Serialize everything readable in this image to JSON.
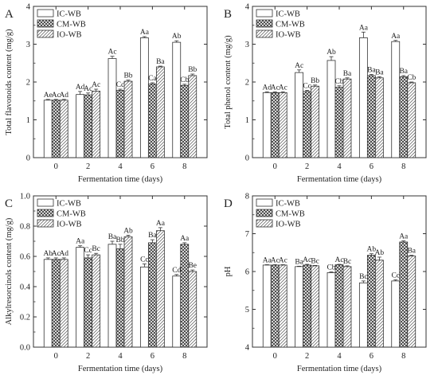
{
  "colors": {
    "frame": "#333333",
    "bar_edge": "#333333",
    "background": "#ffffff"
  },
  "series_styles": [
    {
      "name": "IC-WB",
      "fill": "white"
    },
    {
      "name": "CM-WB",
      "fill": "crosshatch"
    },
    {
      "name": "IO-WB",
      "fill": "diagonal"
    }
  ],
  "chart_data": [
    {
      "panel": "A",
      "type": "bar",
      "ylabel": "Total flavonoids content (mg/g)",
      "xlabel": "Fermentation time (days)",
      "categories": [
        "0",
        "2",
        "4",
        "6",
        "8"
      ],
      "ylim": [
        0,
        4
      ],
      "yticks": [
        0,
        1,
        2,
        3,
        4
      ],
      "grid": false,
      "legend": "top-left",
      "series": [
        {
          "name": "IC-WB",
          "values": [
            1.52,
            1.67,
            2.62,
            3.17,
            3.05
          ],
          "errors": [
            0.02,
            0.08,
            0.06,
            0.03,
            0.04
          ],
          "labels": [
            "Ae",
            "Ad",
            "Ac",
            "Aa",
            "Ab"
          ]
        },
        {
          "name": "CM-WB",
          "values": [
            1.52,
            1.66,
            1.78,
            1.95,
            1.91
          ],
          "errors": [
            0.02,
            0.05,
            0.03,
            0.03,
            0.03
          ],
          "labels": [
            "Ac",
            "Ac",
            "Cc",
            "Ca",
            "Cb"
          ]
        },
        {
          "name": "IO-WB",
          "values": [
            1.52,
            1.76,
            2.02,
            2.4,
            2.17
          ],
          "errors": [
            0.02,
            0.05,
            0.03,
            0.02,
            0.04
          ],
          "labels": [
            "Ad",
            "Ac",
            "Bb",
            "Ba",
            "Bb"
          ]
        }
      ]
    },
    {
      "panel": "B",
      "type": "bar",
      "ylabel": "Total phenol content (mg/g)",
      "xlabel": "Fermentation time (days)",
      "categories": [
        "0",
        "2",
        "4",
        "6",
        "8"
      ],
      "ylim": [
        0,
        4
      ],
      "yticks": [
        0,
        1,
        2,
        3,
        4
      ],
      "grid": false,
      "legend": "top-left",
      "series": [
        {
          "name": "IC-WB",
          "values": [
            1.72,
            2.25,
            2.57,
            3.17,
            3.07
          ],
          "errors": [
            0.02,
            0.07,
            0.1,
            0.15,
            0.03
          ],
          "labels": [
            "Ad",
            "Ac",
            "Ab",
            "Aa",
            "Aa"
          ]
        },
        {
          "name": "CM-WB",
          "values": [
            1.72,
            1.75,
            1.86,
            2.17,
            2.14
          ],
          "errors": [
            0.02,
            0.03,
            0.04,
            0.03,
            0.03
          ],
          "labels": [
            "Ac",
            "Cc",
            "Cb",
            "Ba",
            "Ba"
          ]
        },
        {
          "name": "IO-WB",
          "values": [
            1.72,
            1.89,
            2.08,
            2.11,
            1.98
          ],
          "errors": [
            0.02,
            0.03,
            0.03,
            0.03,
            0.02
          ],
          "labels": [
            "Ac",
            "Bb",
            "Ba",
            "Ba",
            "Cb"
          ]
        }
      ]
    },
    {
      "panel": "C",
      "type": "bar",
      "ylabel": "Alkylresorcinols content (mg/g)",
      "xlabel": "Fermentation time (days)",
      "categories": [
        "0",
        "2",
        "4",
        "6",
        "8"
      ],
      "ylim": [
        0,
        1.0
      ],
      "yticks": [
        0,
        0.2,
        0.4,
        0.6,
        0.8,
        1.0
      ],
      "ytick_labels": [
        "0.0",
        "0.2",
        "0.4",
        "0.6",
        "0.8",
        "1.0"
      ],
      "grid": false,
      "legend": "top-left",
      "series": [
        {
          "name": "IC-WB",
          "values": [
            0.58,
            0.66,
            0.68,
            0.53,
            0.47
          ],
          "errors": [
            0.01,
            0.01,
            0.02,
            0.02,
            0.01
          ],
          "labels": [
            "Ab",
            "Aa",
            "Ba",
            "Cc",
            "Cd"
          ]
        },
        {
          "name": "CM-WB",
          "values": [
            0.58,
            0.59,
            0.65,
            0.69,
            0.68
          ],
          "errors": [
            0.01,
            0.02,
            0.03,
            0.02,
            0.01
          ],
          "labels": [
            "Ac",
            "Cc",
            "Bb",
            "Ba",
            "Aa"
          ]
        },
        {
          "name": "IO-WB",
          "values": [
            0.58,
            0.61,
            0.73,
            0.77,
            0.5
          ],
          "errors": [
            0.01,
            0.01,
            0.01,
            0.02,
            0.01
          ],
          "labels": [
            "Ad",
            "Bc",
            "Ab",
            "Aa",
            "Be"
          ]
        }
      ]
    },
    {
      "panel": "D",
      "type": "bar",
      "ylabel": "pH",
      "xlabel": "Fermentation time (days)",
      "categories": [
        "0",
        "2",
        "4",
        "6",
        "8"
      ],
      "ylim": [
        4,
        8
      ],
      "yticks": [
        4,
        5,
        6,
        7,
        8
      ],
      "grid": false,
      "legend": "top-left",
      "series": [
        {
          "name": "IC-WB",
          "values": [
            6.17,
            6.13,
            5.97,
            5.7,
            5.75
          ],
          "errors": [
            0.01,
            0.01,
            0.02,
            0.05,
            0.03
          ],
          "labels": [
            "Aa",
            "Ba",
            "Cb",
            "Bc",
            "Cc"
          ]
        },
        {
          "name": "CM-WB",
          "values": [
            6.17,
            6.17,
            6.18,
            6.43,
            6.78
          ],
          "errors": [
            0.01,
            0.02,
            0.01,
            0.04,
            0.03
          ],
          "labels": [
            "Ac",
            "Ac",
            "Ac",
            "Ab",
            "Aa"
          ]
        },
        {
          "name": "IO-WB",
          "values": [
            6.17,
            6.15,
            6.13,
            6.3,
            6.41
          ],
          "errors": [
            0.01,
            0.01,
            0.02,
            0.08,
            0.02
          ],
          "labels": [
            "Ac",
            "Bc",
            "Bc",
            "Ab",
            "Ba"
          ]
        }
      ]
    }
  ]
}
